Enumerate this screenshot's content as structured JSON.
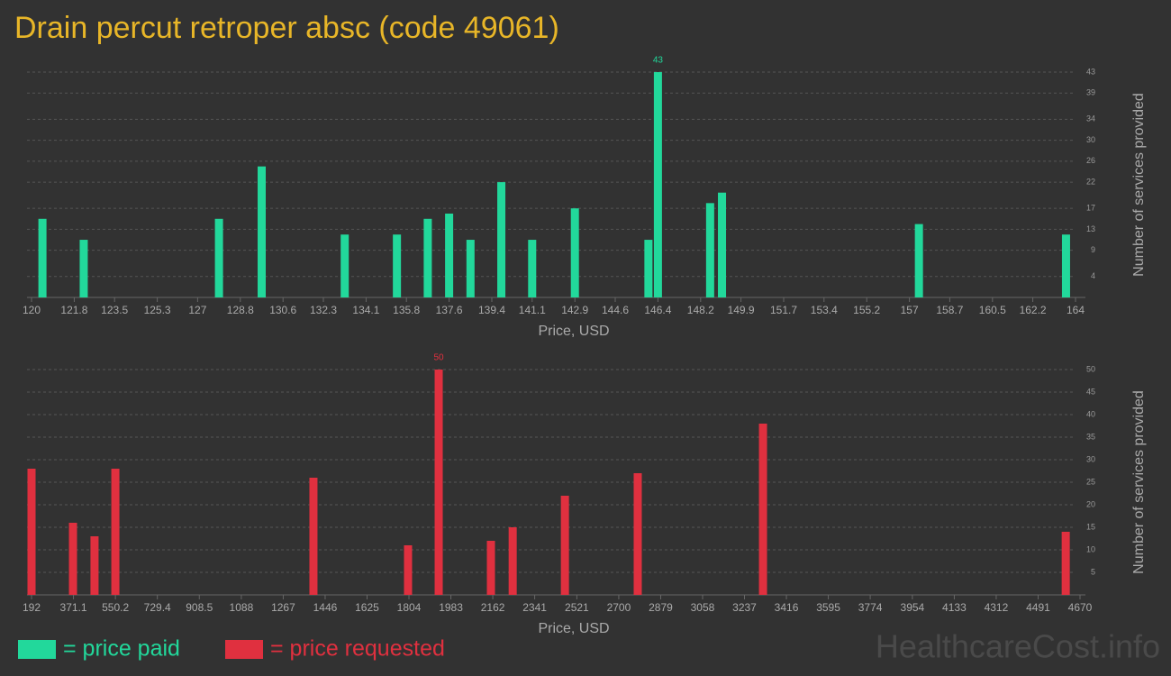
{
  "title": "Drain percut retroper absc (code 49061)",
  "watermark": "HealthcareCost.info",
  "chart_data": [
    {
      "type": "bar",
      "xlabel": "Price, USD",
      "ylabel": "Number of services provided",
      "grid": true,
      "x": [
        120.46,
        122.2,
        127.9,
        129.7,
        133.2,
        135.4,
        136.7,
        137.6,
        138.5,
        139.8,
        141.1,
        142.9,
        146.0,
        146.4,
        148.6,
        149.1,
        157.4,
        163.6
      ],
      "series": [
        {
          "name": "= price paid",
          "color": "#22d89b",
          "values": [
            15,
            11,
            15,
            25,
            12,
            12,
            15,
            16,
            11,
            22,
            11,
            17,
            11,
            43,
            18,
            20,
            14,
            12
          ]
        }
      ],
      "xlim": [
        120,
        164
      ],
      "xticks": [
        120,
        121.8,
        123.5,
        125.3,
        127,
        128.8,
        130.6,
        132.3,
        134.1,
        135.8,
        137.6,
        139.4,
        141.1,
        142.9,
        144.6,
        146.4,
        148.2,
        149.9,
        151.7,
        153.4,
        155.2,
        157,
        158.7,
        160.5,
        162.2,
        164
      ],
      "ylim": [
        0,
        43
      ],
      "yticks": [
        4,
        9,
        13,
        17,
        22,
        26,
        30,
        34,
        39,
        43
      ]
    },
    {
      "type": "bar",
      "xlabel": "Price, USD",
      "ylabel": "Number of services provided",
      "grid": true,
      "x": [
        192,
        369,
        461,
        550,
        1396,
        1800,
        1931,
        2154,
        2247,
        2470,
        2781,
        3316,
        4609
      ],
      "series": [
        {
          "name": "= price requested",
          "color": "#e0303f",
          "values": [
            28,
            16,
            13,
            28,
            26,
            11,
            50,
            12,
            15,
            22,
            27,
            38,
            14
          ]
        }
      ],
      "xlim": [
        192,
        4670
      ],
      "xticks": [
        192,
        371.1,
        550.2,
        729.4,
        908.5,
        1088,
        1267,
        1446,
        1625,
        1804,
        1983,
        2162,
        2341,
        2521,
        2700,
        2879,
        3058,
        3237,
        3416,
        3595,
        3774,
        3954,
        4133,
        4312,
        4491,
        4670
      ],
      "ylim": [
        0,
        50
      ],
      "yticks": [
        5,
        10,
        15,
        20,
        25,
        30,
        35,
        40,
        45,
        50
      ]
    }
  ]
}
